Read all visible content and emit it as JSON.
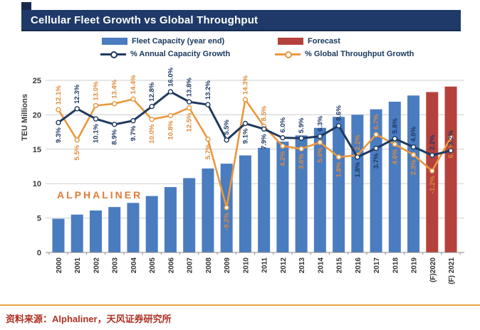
{
  "header": {
    "title": "Cellular Fleet Growth vs Global Throughput"
  },
  "legend": {
    "fleet_label": "Fleet Capacity (year end)",
    "forecast_label": "Forecast",
    "capacity_line_label": "% Annual Capacity Growth",
    "throughput_line_label": "% Global Throughput Growth"
  },
  "watermark": "ALPHALINER",
  "footer": {
    "source": "资料来源：Alphaliner，天风证券研究所"
  },
  "colors": {
    "header_bg": "#1f3a68",
    "bar_blue": "#4a7cc0",
    "bar_forecast_red": "#b5413c",
    "capacity_line_navy": "#1e3a5f",
    "throughput_line_orange": "#e8993f",
    "navy_label": "#1f3864",
    "orange_label": "#dd8a3d",
    "axis_text": "#3a3a3a",
    "gridline": "#cfcfcf",
    "watermark_orange": "#e07b39",
    "source_red": "#b03123",
    "footer_rule_orange": "#eca245"
  },
  "chart_data": {
    "type": "combo-bar-line",
    "title": "Cellular Fleet Growth vs Global Throughput",
    "ylabel": "TEU Millions",
    "ylim": [
      0,
      25
    ],
    "yticks": [
      "0",
      "5",
      "10",
      "15",
      "20",
      "25"
    ],
    "grid": "horizontal",
    "legend_position": "top",
    "categories": [
      "2000",
      "2001",
      "2002",
      "2003",
      "2004",
      "2005",
      "2006",
      "2007",
      "2008",
      "2009",
      "2010",
      "2011",
      "2012",
      "2013",
      "2014",
      "2015",
      "2016",
      "2017",
      "2018",
      "2019",
      "(F)2020",
      "(F) 2021"
    ],
    "series": [
      {
        "name": "Fleet Capacity (year end)",
        "type": "bar",
        "unit": "TEU millions",
        "values": [
          4.9,
          5.5,
          6.1,
          6.6,
          7.2,
          8.2,
          9.5,
          10.8,
          12.2,
          12.9,
          14.1,
          15.2,
          16.1,
          17.0,
          18.1,
          19.7,
          20.0,
          20.8,
          21.9,
          22.8,
          23.3,
          24.1
        ],
        "forecast_start_index": 20
      },
      {
        "name": "% Annual Capacity Growth",
        "type": "line",
        "unit": "%",
        "values": [
          9.3,
          12.3,
          10.1,
          8.9,
          9.7,
          12.8,
          16.0,
          13.8,
          13.2,
          5.5,
          9.1,
          7.9,
          6.0,
          5.9,
          6.3,
          8.6,
          1.8,
          3.7,
          5.8,
          4.0,
          2.2,
          3.2
        ],
        "labels": [
          "9.3%",
          "12.3%",
          "10.1%",
          "8.9%",
          "9.7%",
          "12.8%",
          "16.0%",
          "13.8%",
          "13.2%",
          "5.5%",
          "9.1%",
          "7.9%",
          "6.0%",
          "5.9%",
          "6.3%",
          "8.6%",
          "1.8%",
          "3.7%",
          "5.8%",
          "4.0%",
          "2.2%",
          "3.2%"
        ],
        "label_side": [
          "below",
          "above",
          "below",
          "below",
          "below",
          "above",
          "above",
          "above",
          "above",
          "above",
          "below",
          "below",
          "above",
          "above",
          "above",
          "above",
          "below",
          "below",
          "above",
          "above",
          "above",
          "above"
        ]
      },
      {
        "name": "% Global Throughput Growth",
        "type": "line",
        "unit": "%",
        "values": [
          12.1,
          5.5,
          13.0,
          13.4,
          14.4,
          10.0,
          10.8,
          12.5,
          5.7,
          -9.2,
          14.3,
          8.5,
          4.2,
          3.6,
          5.0,
          1.8,
          2.2,
          6.7,
          4.6,
          2.3,
          -1.2,
          6.0
        ],
        "labels": [
          "12.1%",
          "5.5%",
          "13.0%",
          "13.4%",
          "14.4%",
          "10.0%",
          "10.8%",
          "12.5%",
          "5.7%",
          "-9.2%",
          "14.3%",
          "8.5%",
          "4.2%",
          "3.6%",
          "5.0%",
          "1.8%",
          "2.2%",
          "6.7%",
          "4.6%",
          "2.3%",
          "-1.2%",
          "6.0%"
        ],
        "label_side": [
          "above",
          "below",
          "above",
          "above",
          "above",
          "below",
          "below",
          "below",
          "below",
          "below",
          "above",
          "above",
          "below",
          "below",
          "below",
          "below",
          "above",
          "above",
          "below",
          "below",
          "below",
          "below"
        ]
      }
    ]
  }
}
